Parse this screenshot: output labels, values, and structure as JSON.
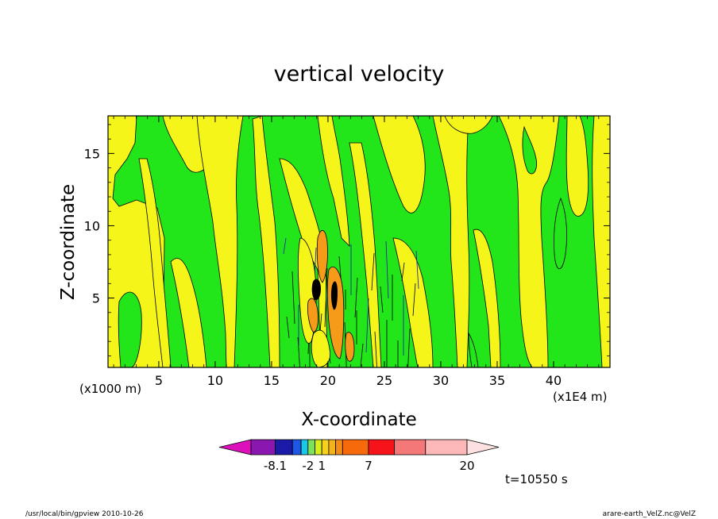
{
  "chart_data": {
    "type": "heatmap",
    "title": "vertical velocity",
    "xlabel": "X-coordinate",
    "ylabel": "Z-coordinate",
    "x_unit_left": "(x1000 m)",
    "x_unit_right": "(x1E4 m)",
    "xlim": [
      0.5,
      45
    ],
    "ylim": [
      0.2,
      17.6
    ],
    "x_ticks": [
      "5",
      "10",
      "15",
      "20",
      "25",
      "30",
      "35",
      "40"
    ],
    "y_ticks": [
      "5",
      "10",
      "15"
    ],
    "grid": false,
    "colorbar": {
      "colors": [
        "#dd11bb",
        "#8a18b0",
        "#1a1aa8",
        "#1f56e6",
        "#19c8e6",
        "#7ee15a",
        "#d7ee1a",
        "#f7d21b",
        "#f4b31b",
        "#f58a17",
        "#f76a0c",
        "#f6141a",
        "#f57878",
        "#fcb8b8",
        "#fde0e0"
      ],
      "labels": [
        "-8.1",
        "-2",
        "1",
        "7",
        "20"
      ]
    },
    "series": [
      {
        "name": "green",
        "color": "#22e61a"
      },
      {
        "name": "yellow",
        "color": "#f5f51a"
      },
      {
        "name": "orange",
        "color": "#f59a19"
      }
    ],
    "timestamp": "t=10550 s"
  },
  "footer": {
    "left": "/usr/local/bin/gpview  2010-10-26",
    "right": "arare-earth_VelZ.nc@VelZ"
  }
}
